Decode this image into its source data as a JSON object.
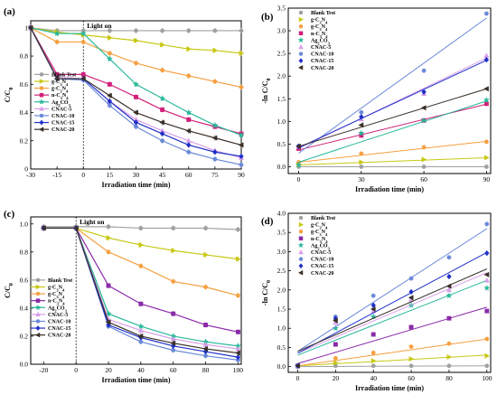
{
  "chart_data": [
    {
      "id": "a",
      "label": "(a)",
      "type": "line",
      "annotation": "Light on",
      "divider_x": 0,
      "xlabel": "Irradiation time (min)",
      "ylabel": "C/C₀",
      "xlim": [
        -30,
        90
      ],
      "ylim": [
        0,
        1.05
      ],
      "xticks": [
        -30,
        -15,
        0,
        15,
        30,
        45,
        60,
        75,
        90
      ],
      "yticks": [
        0,
        0.2,
        0.4,
        0.6,
        0.8,
        1.0
      ],
      "ytick_labels": [
        "0",
        "0.2",
        "0.4",
        "0.6",
        "0.8",
        "1"
      ],
      "legend_position": "middle-left",
      "x": [
        -30,
        -15,
        0,
        15,
        30,
        45,
        60,
        75,
        90
      ],
      "series": [
        {
          "name": "Blank Test",
          "color": "#a0a0a0",
          "marker": "circle",
          "values": [
            1.0,
            0.98,
            0.98,
            0.98,
            0.98,
            0.98,
            0.98,
            0.98,
            0.98
          ]
        },
        {
          "name": "g-C₃N₄",
          "color": "#c8c814",
          "marker": "tri-right",
          "values": [
            1.0,
            0.97,
            0.95,
            0.93,
            0.91,
            0.88,
            0.85,
            0.84,
            0.82
          ]
        },
        {
          "name": "g-C₃N₄",
          "color": "#f5a040",
          "marker": "circle",
          "values": [
            1.0,
            0.9,
            0.9,
            0.82,
            0.75,
            0.7,
            0.66,
            0.62,
            0.58
          ]
        },
        {
          "name": "n-C₃N₄",
          "color": "#d0207a",
          "marker": "square",
          "values": [
            1.0,
            0.67,
            0.67,
            0.6,
            0.51,
            0.42,
            0.35,
            0.3,
            0.25
          ]
        },
        {
          "name": "Ag₂CO₃",
          "color": "#28b89a",
          "marker": "star",
          "values": [
            1.0,
            0.96,
            0.96,
            0.78,
            0.6,
            0.5,
            0.4,
            0.31,
            0.24
          ]
        },
        {
          "name": "CNAC-5",
          "color": "#d8a0e8",
          "marker": "tri-up",
          "values": [
            1.0,
            0.65,
            0.64,
            0.48,
            0.35,
            0.27,
            0.2,
            0.13,
            0.08
          ]
        },
        {
          "name": "CNAC-10",
          "color": "#6a8ad8",
          "marker": "circle",
          "values": [
            1.0,
            0.64,
            0.63,
            0.45,
            0.3,
            0.2,
            0.12,
            0.07,
            0.03
          ]
        },
        {
          "name": "CNAC-15",
          "color": "#2030c8",
          "marker": "diamond",
          "values": [
            1.0,
            0.64,
            0.64,
            0.48,
            0.33,
            0.25,
            0.17,
            0.12,
            0.09
          ]
        },
        {
          "name": "CNAC-20",
          "color": "#3a3028",
          "marker": "tri-left",
          "values": [
            1.0,
            0.64,
            0.64,
            0.52,
            0.4,
            0.33,
            0.27,
            0.22,
            0.17
          ]
        }
      ]
    },
    {
      "id": "b",
      "label": "(b)",
      "type": "scatter",
      "xlabel": "Irradiation time (min)",
      "ylabel": "-ln C/C₀",
      "xlim": [
        -5,
        92
      ],
      "ylim": [
        -0.15,
        3.5
      ],
      "xticks": [
        0,
        30,
        60,
        90
      ],
      "yticks": [
        0,
        0.5,
        1.0,
        1.5,
        2.0,
        2.5,
        3.0,
        3.5
      ],
      "ytick_labels": [
        "0.0",
        "0.5",
        "1.0",
        "1.5",
        "2.0",
        "2.5",
        "3.0",
        "3.5"
      ],
      "legend_position": "top-left",
      "x": [
        0,
        30,
        60,
        90
      ],
      "series": [
        {
          "name": "Blank Test",
          "color": "#a0a0a0",
          "marker": "circle",
          "values": [
            0.0,
            0.0,
            0.0,
            0.0
          ],
          "fit": [
            0.0,
            0.0
          ]
        },
        {
          "name": "g-C₃N₄",
          "color": "#c8c814",
          "marker": "tri-right",
          "values": [
            0.05,
            0.1,
            0.16,
            0.2
          ],
          "fit": [
            0.04,
            0.2
          ]
        },
        {
          "name": "g-C₃N₄",
          "color": "#f5a040",
          "marker": "circle",
          "values": [
            0.1,
            0.29,
            0.43,
            0.55
          ],
          "fit": [
            0.1,
            0.56
          ]
        },
        {
          "name": "n-C₃N₄",
          "color": "#d0207a",
          "marker": "square",
          "values": [
            0.4,
            0.69,
            1.02,
            1.39
          ],
          "fit": [
            0.37,
            1.38
          ]
        },
        {
          "name": "Ag₂CO₃",
          "color": "#28b89a",
          "marker": "star",
          "values": [
            0.04,
            0.74,
            1.02,
            1.47
          ],
          "fit": [
            0.1,
            1.45
          ]
        },
        {
          "name": "CNAC-5",
          "color": "#d8a0e8",
          "marker": "tri-up",
          "values": [
            0.45,
            1.05,
            1.61,
            2.45
          ],
          "fit": [
            0.4,
            2.4
          ]
        },
        {
          "name": "CNAC-10",
          "color": "#6a8ad8",
          "marker": "circle",
          "values": [
            0.46,
            1.2,
            2.12,
            3.38
          ],
          "fit": [
            0.3,
            3.28
          ]
        },
        {
          "name": "CNAC-15",
          "color": "#2030c8",
          "marker": "diamond",
          "values": [
            0.45,
            1.1,
            1.65,
            2.36
          ],
          "fit": [
            0.42,
            2.35
          ]
        },
        {
          "name": "CNAC-20",
          "color": "#3a3028",
          "marker": "tri-left",
          "values": [
            0.45,
            0.92,
            1.3,
            1.72
          ],
          "fit": [
            0.45,
            1.72
          ]
        }
      ]
    },
    {
      "id": "c",
      "label": "(c)",
      "type": "line",
      "annotation": "Light on",
      "divider_x": 0,
      "xlabel": "Irradiation time (min)",
      "ylabel": "C/C₀",
      "xlim": [
        -28,
        102
      ],
      "ylim": [
        0,
        1.05
      ],
      "xticks": [
        -20,
        0,
        20,
        40,
        60,
        80,
        100
      ],
      "yticks": [
        0,
        0.2,
        0.4,
        0.6,
        0.8,
        1.0
      ],
      "ytick_labels": [
        "0.0",
        "0.2",
        "0.4",
        "0.6",
        "0.8",
        "1.0"
      ],
      "legend_position": "left",
      "x": [
        -20,
        0,
        20,
        40,
        60,
        80,
        100
      ],
      "series": [
        {
          "name": "Blank Test",
          "color": "#a0a0a0",
          "marker": "circle",
          "values": [
            0.98,
            0.98,
            0.98,
            0.97,
            0.97,
            0.97,
            0.96
          ]
        },
        {
          "name": "g-C₃N₄",
          "color": "#c8c814",
          "marker": "tri-right",
          "values": [
            0.97,
            0.97,
            0.9,
            0.85,
            0.81,
            0.78,
            0.75
          ]
        },
        {
          "name": "g-C₃N₄",
          "color": "#f5a040",
          "marker": "circle",
          "values": [
            0.97,
            0.97,
            0.8,
            0.7,
            0.59,
            0.55,
            0.49
          ]
        },
        {
          "name": "n-C₃N₄",
          "color": "#8a2aa8",
          "marker": "square",
          "values": [
            0.97,
            0.97,
            0.56,
            0.43,
            0.36,
            0.28,
            0.23
          ]
        },
        {
          "name": "Ag₂CO₃",
          "color": "#28b89a",
          "marker": "star",
          "values": [
            0.97,
            0.97,
            0.36,
            0.27,
            0.2,
            0.16,
            0.13
          ]
        },
        {
          "name": "CNAC-5",
          "color": "#d8a0e8",
          "marker": "tri-up",
          "values": [
            0.97,
            0.97,
            0.32,
            0.24,
            0.18,
            0.14,
            0.11
          ]
        },
        {
          "name": "CNAC-10",
          "color": "#6a8ad8",
          "marker": "circle",
          "values": [
            0.97,
            0.97,
            0.27,
            0.16,
            0.1,
            0.06,
            0.03
          ]
        },
        {
          "name": "CNAC-15",
          "color": "#2030c8",
          "marker": "diamond",
          "values": [
            0.97,
            0.97,
            0.28,
            0.19,
            0.13,
            0.09,
            0.05
          ]
        },
        {
          "name": "CNAC-20",
          "color": "#3a3028",
          "marker": "tri-left",
          "values": [
            0.97,
            0.97,
            0.3,
            0.2,
            0.15,
            0.11,
            0.08
          ]
        }
      ]
    },
    {
      "id": "d",
      "label": "(d)",
      "type": "scatter",
      "xlabel": "Irradiation time (min)",
      "ylabel": "-ln C/C₀",
      "xlim": [
        -5,
        102
      ],
      "ylim": [
        -0.15,
        4.0
      ],
      "xticks": [
        0,
        20,
        40,
        60,
        80,
        100
      ],
      "yticks": [
        0,
        0.5,
        1.0,
        1.5,
        2.0,
        2.5,
        3.0,
        3.5,
        4.0
      ],
      "ytick_labels": [
        "0.0",
        "0.5",
        "1.0",
        "1.5",
        "2.0",
        "2.5",
        "3.0",
        "3.5",
        "4.0"
      ],
      "legend_position": "top-left",
      "x": [
        0,
        20,
        40,
        60,
        80,
        100
      ],
      "series": [
        {
          "name": "Blank Test",
          "color": "#a0a0a0",
          "marker": "circle",
          "values": [
            0.0,
            0.02,
            0.02,
            0.02,
            0.02,
            0.02
          ],
          "fit": [
            0.0,
            0.02
          ]
        },
        {
          "name": "g-C₃N₄",
          "color": "#c8c814",
          "marker": "tri-right",
          "values": [
            0.02,
            0.1,
            0.15,
            0.2,
            0.25,
            0.28
          ],
          "fit": [
            0.02,
            0.3
          ]
        },
        {
          "name": "g-C₃N₄",
          "color": "#f5a040",
          "marker": "circle",
          "values": [
            0.02,
            0.22,
            0.36,
            0.52,
            0.6,
            0.72
          ],
          "fit": [
            0.02,
            0.72
          ]
        },
        {
          "name": "n-C₃N₄",
          "color": "#8a2aa8",
          "marker": "square",
          "values": [
            0.02,
            0.58,
            0.84,
            1.03,
            1.26,
            1.45
          ],
          "fit": [
            0.08,
            1.55
          ]
        },
        {
          "name": "Ag₂CO₃",
          "color": "#28b89a",
          "marker": "star",
          "values": [
            0.02,
            1.0,
            1.3,
            1.6,
            1.85,
            2.05
          ],
          "fit": [
            0.3,
            2.25
          ]
        },
        {
          "name": "CNAC-5",
          "color": "#d8a0e8",
          "marker": "tri-up",
          "values": [
            0.02,
            1.15,
            1.45,
            1.75,
            2.0,
            2.25
          ],
          "fit": [
            0.35,
            2.45
          ]
        },
        {
          "name": "CNAC-10",
          "color": "#6a8ad8",
          "marker": "circle",
          "values": [
            0.02,
            1.3,
            1.85,
            2.3,
            2.85,
            3.72
          ],
          "fit": [
            0.4,
            3.6
          ]
        },
        {
          "name": "CNAC-15",
          "color": "#2030c8",
          "marker": "diamond",
          "values": [
            0.02,
            1.25,
            1.6,
            1.95,
            2.35,
            2.96
          ],
          "fit": [
            0.35,
            2.98
          ]
        },
        {
          "name": "CNAC-20",
          "color": "#3a3028",
          "marker": "tri-left",
          "values": [
            0.02,
            1.2,
            1.5,
            1.8,
            2.1,
            2.4
          ],
          "fit": [
            0.4,
            2.55
          ]
        }
      ]
    }
  ]
}
